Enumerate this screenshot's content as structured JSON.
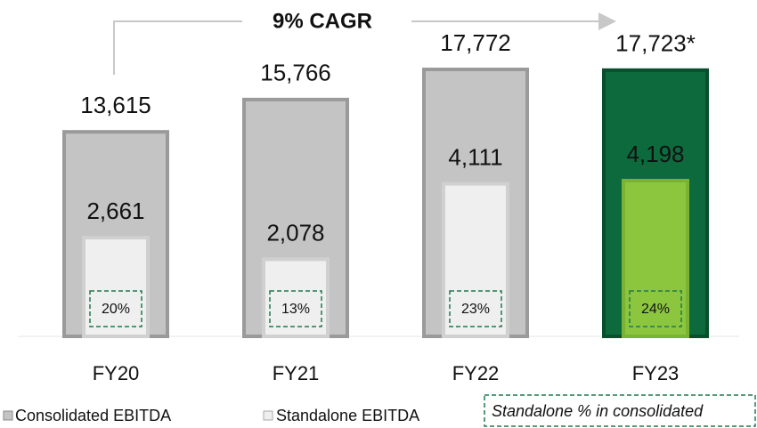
{
  "chart_data": {
    "type": "bar",
    "annotation": "9% CAGR",
    "categories": [
      "FY20",
      "FY21",
      "FY22",
      "FY23"
    ],
    "series": [
      {
        "name": "Consolidated EBITDA",
        "color": "#c4c4c4",
        "colors": [
          "#c4c4c4",
          "#c4c4c4",
          "#c4c4c4",
          "#0d6a3d"
        ],
        "values": [
          13615,
          15766,
          17772,
          17723
        ],
        "value_labels": [
          "13,615",
          "15,766",
          "17,772",
          "17,723*"
        ]
      },
      {
        "name": "Standalone EBITDA",
        "color": "#efefef",
        "colors": [
          "#efefef",
          "#efefef",
          "#efefef",
          "#8cc63f"
        ],
        "values": [
          2661,
          2078,
          4111,
          4198
        ],
        "value_labels": [
          "2,661",
          "2,078",
          "4,111",
          "4,198"
        ]
      },
      {
        "name": "Standalone % in consolidated",
        "color": "#1f7a4d",
        "values": [
          20,
          13,
          23,
          24
        ],
        "value_labels": [
          "20%",
          "13%",
          "23%",
          "24%"
        ]
      }
    ]
  }
}
